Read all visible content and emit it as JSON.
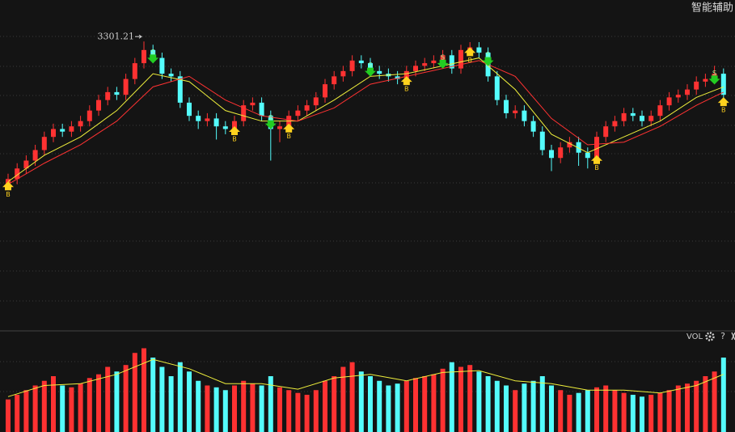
{
  "chart_data": {
    "type": "candlestick",
    "corner_title": "智能辅助",
    "volume_label": "VOL",
    "help_label": "?",
    "buy_label": "B",
    "sell_label": "S",
    "up_color": "#ff3232",
    "down_color": "#54fcfc",
    "ylim": [
      2750,
      3380
    ],
    "open": [
      3030,
      3040,
      3060,
      3075,
      3095,
      3120,
      3135,
      3130,
      3140,
      3150,
      3170,
      3190,
      3205,
      3200,
      3230,
      3260,
      3285,
      3270,
      3240,
      3235,
      3185,
      3160,
      3150,
      3155,
      3140,
      3135,
      3150,
      3180,
      3185,
      3160,
      3135,
      3140,
      3160,
      3170,
      3180,
      3195,
      3220,
      3235,
      3245,
      3265,
      3260,
      3245,
      3240,
      3235,
      3230,
      3245,
      3255,
      3260,
      3265,
      3275,
      3250,
      3285,
      3290,
      3280,
      3235,
      3190,
      3165,
      3170,
      3150,
      3130,
      3095,
      3080,
      3100,
      3110,
      3090,
      3080,
      3120,
      3140,
      3150,
      3165,
      3160,
      3150,
      3160,
      3180,
      3195,
      3200,
      3210,
      3225,
      3230,
      3240
    ],
    "close": [
      3040,
      3060,
      3075,
      3095,
      3120,
      3135,
      3130,
      3140,
      3150,
      3170,
      3190,
      3205,
      3200,
      3230,
      3260,
      3285,
      3270,
      3240,
      3235,
      3185,
      3160,
      3150,
      3155,
      3140,
      3135,
      3150,
      3180,
      3185,
      3160,
      3135,
      3140,
      3160,
      3170,
      3180,
      3195,
      3220,
      3235,
      3245,
      3265,
      3260,
      3245,
      3240,
      3235,
      3230,
      3245,
      3255,
      3260,
      3265,
      3275,
      3250,
      3285,
      3290,
      3280,
      3235,
      3190,
      3165,
      3170,
      3150,
      3130,
      3095,
      3080,
      3100,
      3110,
      3090,
      3080,
      3120,
      3140,
      3150,
      3165,
      3160,
      3150,
      3160,
      3180,
      3195,
      3200,
      3210,
      3225,
      3230,
      3240,
      3200
    ],
    "high": [
      3050,
      3070,
      3085,
      3105,
      3130,
      3145,
      3145,
      3150,
      3160,
      3180,
      3200,
      3215,
      3215,
      3240,
      3270,
      3301.21,
      3295,
      3280,
      3250,
      3245,
      3195,
      3170,
      3165,
      3165,
      3150,
      3160,
      3190,
      3195,
      3195,
      3170,
      3150,
      3170,
      3180,
      3190,
      3205,
      3230,
      3245,
      3255,
      3275,
      3275,
      3270,
      3255,
      3250,
      3245,
      3255,
      3265,
      3270,
      3275,
      3285,
      3285,
      3295,
      3300,
      3300,
      3290,
      3245,
      3200,
      3180,
      3180,
      3160,
      3140,
      3105,
      3110,
      3120,
      3120,
      3100,
      3130,
      3150,
      3160,
      3175,
      3175,
      3170,
      3170,
      3190,
      3205,
      3210,
      3220,
      3235,
      3240,
      3255,
      3250
    ],
    "low": [
      3020,
      3030,
      3050,
      3065,
      3085,
      3110,
      3120,
      3120,
      3130,
      3140,
      3160,
      3180,
      3190,
      3190,
      3220,
      3250,
      3260,
      3230,
      3225,
      3175,
      3150,
      3135,
      3140,
      3115,
      3125,
      3125,
      3140,
      3170,
      3150,
      3075,
      3110,
      3130,
      3150,
      3160,
      3170,
      3185,
      3210,
      3225,
      3235,
      3250,
      3235,
      3230,
      3225,
      3220,
      3220,
      3235,
      3245,
      3250,
      3255,
      3240,
      3240,
      3275,
      3270,
      3225,
      3180,
      3155,
      3155,
      3140,
      3120,
      3085,
      3055,
      3070,
      3090,
      3065,
      3060,
      3070,
      3110,
      3130,
      3140,
      3150,
      3140,
      3140,
      3150,
      3170,
      3185,
      3190,
      3200,
      3215,
      3220,
      3180
    ],
    "peak_index": 15,
    "ma_x": [
      0,
      4,
      8,
      12,
      16,
      20,
      24,
      28,
      32,
      36,
      40,
      44,
      48,
      52,
      56,
      60,
      64,
      68,
      72,
      76,
      79
    ],
    "series": [
      {
        "color": "#f0f03c",
        "values": [
          3035,
          3085,
          3120,
          3170,
          3240,
          3225,
          3170,
          3150,
          3150,
          3190,
          3235,
          3240,
          3255,
          3270,
          3210,
          3125,
          3090,
          3120,
          3150,
          3195,
          3215
        ]
      },
      {
        "color": "#ff3232",
        "values": [
          3030,
          3070,
          3105,
          3150,
          3215,
          3235,
          3190,
          3160,
          3150,
          3175,
          3220,
          3235,
          3250,
          3265,
          3235,
          3155,
          3105,
          3110,
          3140,
          3180,
          3205
        ]
      }
    ],
    "buy_signals": [
      0,
      25,
      31,
      44,
      51,
      65,
      79
    ],
    "sell_signals": [
      16,
      29,
      40,
      48,
      53,
      78
    ],
    "volume_ylim": [
      0,
      100
    ],
    "volume": [
      35,
      40,
      45,
      50,
      55,
      60,
      50,
      48,
      52,
      58,
      62,
      70,
      65,
      72,
      85,
      90,
      80,
      70,
      60,
      75,
      65,
      55,
      50,
      48,
      45,
      50,
      55,
      52,
      50,
      60,
      48,
      45,
      42,
      40,
      45,
      55,
      60,
      70,
      75,
      65,
      60,
      55,
      50,
      52,
      55,
      58,
      60,
      62,
      68,
      75,
      70,
      72,
      65,
      60,
      55,
      50,
      45,
      52,
      55,
      60,
      50,
      45,
      40,
      42,
      45,
      48,
      50,
      45,
      42,
      40,
      38,
      40,
      42,
      45,
      50,
      52,
      55,
      60,
      65,
      80
    ],
    "volume_ma": {
      "color": "#f0f03c",
      "values": [
        38,
        50,
        52,
        62,
        78,
        68,
        52,
        52,
        46,
        58,
        62,
        55,
        64,
        66,
        55,
        52,
        45,
        45,
        42,
        50,
        62
      ]
    }
  }
}
